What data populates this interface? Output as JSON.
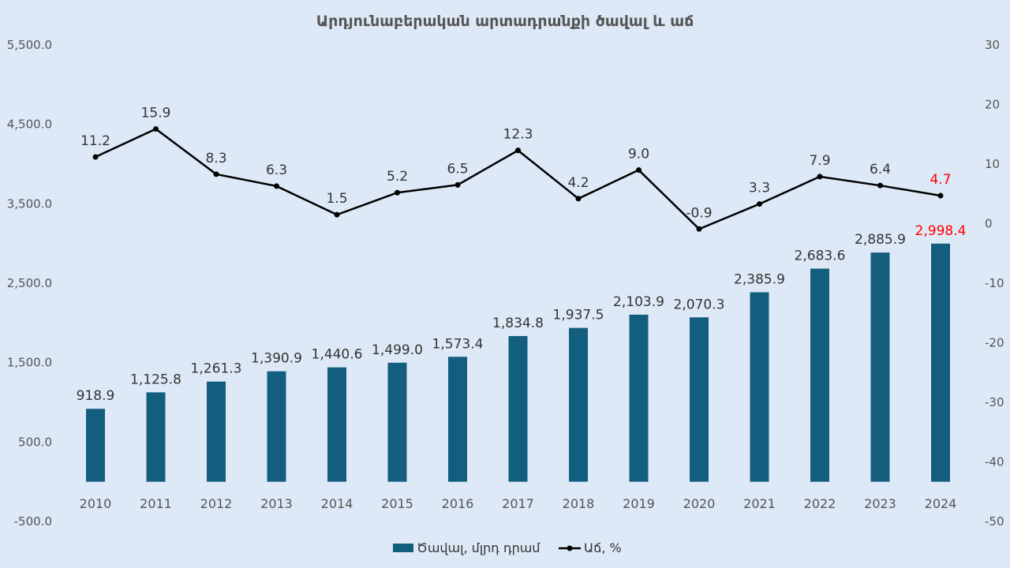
{
  "chart_data": {
    "type": "bar+line",
    "title": "Արդյունաբերական  արտադրանքի ծավալ և աճ",
    "categories": [
      "2010",
      "2011",
      "2012",
      "2013",
      "2014",
      "2015",
      "2016",
      "2017",
      "2018",
      "2019",
      "2020",
      "2021",
      "2022",
      "2023",
      "2024"
    ],
    "series": [
      {
        "name": "Ծավալ, մլրդ դրամ",
        "type": "bar",
        "axis": "left",
        "values": [
          918.9,
          1125.8,
          1261.3,
          1390.9,
          1440.6,
          1499.0,
          1573.4,
          1834.8,
          1937.5,
          2103.9,
          2070.3,
          2385.9,
          2683.6,
          2885.9,
          2998.4
        ],
        "labels": [
          "918.9",
          "1,125.8",
          "1,261.3",
          "1,390.9",
          "1,440.6",
          "1,499.0",
          "1,573.4",
          "1,834.8",
          "1,937.5",
          "2,103.9",
          "2,070.3",
          "2,385.9",
          "2,683.6",
          "2,885.9",
          "2,998.4"
        ]
      },
      {
        "name": "Աճ, %",
        "type": "line",
        "axis": "right",
        "values": [
          11.2,
          15.9,
          8.3,
          6.3,
          1.5,
          5.2,
          6.5,
          12.3,
          4.2,
          9.0,
          -0.9,
          3.3,
          7.9,
          6.4,
          4.7
        ],
        "labels": [
          "11.2",
          "15.9",
          "8.3",
          "6.3",
          "1.5",
          "5.2",
          "6.5",
          "12.3",
          "4.2",
          "9.0",
          "-0.9",
          "3.3",
          "7.9",
          "6.4",
          "4.7"
        ]
      }
    ],
    "left_axis": {
      "range": [
        -500,
        5500
      ],
      "ticks": [
        "-500.0",
        "500.0",
        "1,500.0",
        "2,500.0",
        "3,500.0",
        "4,500.0",
        "5,500.0"
      ]
    },
    "right_axis": {
      "range": [
        -50,
        30
      ],
      "ticks": [
        "-50",
        "-40",
        "-30",
        "-20",
        "-10",
        "0",
        "10",
        "20",
        "30"
      ]
    },
    "grid": false,
    "legend": "bottom",
    "colors": {
      "bar": "#135e7f",
      "line": "#000000",
      "highlight": "#ff0000"
    }
  }
}
